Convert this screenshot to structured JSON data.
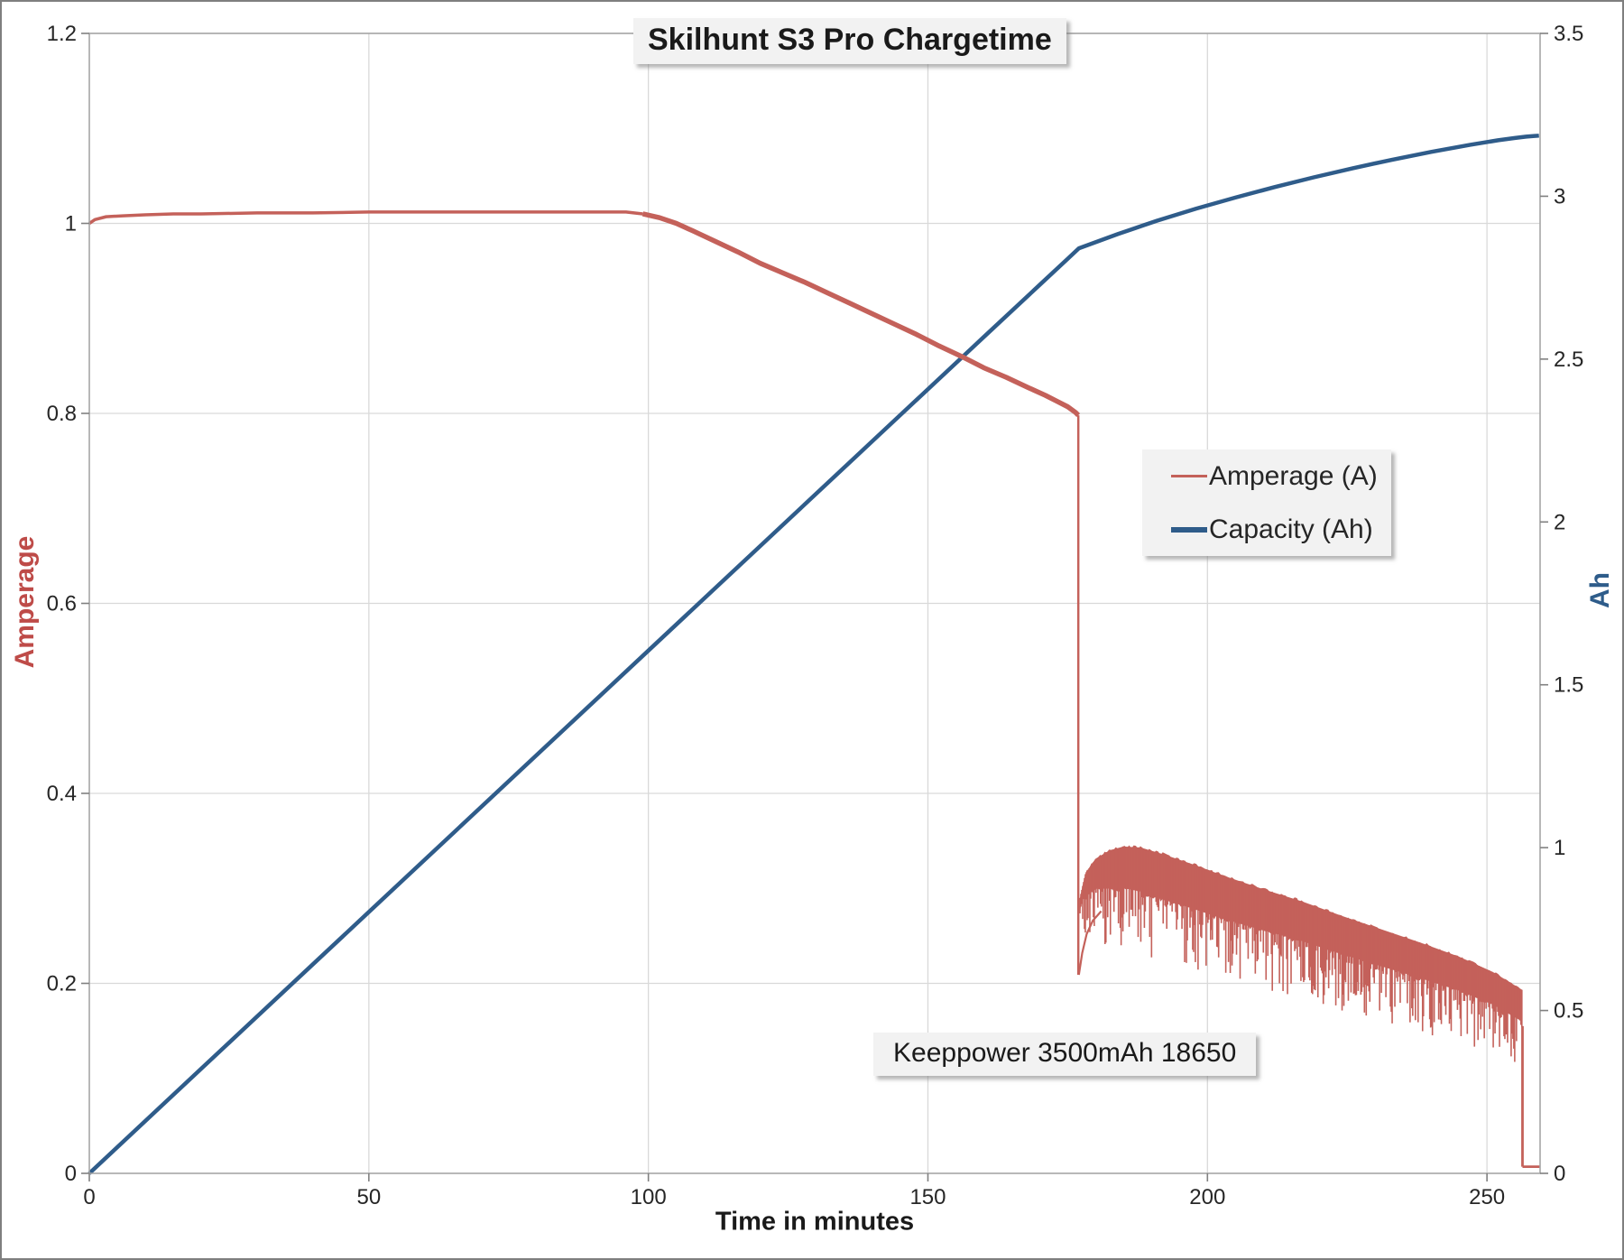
{
  "chart_data": {
    "type": "line",
    "title": "Skilhunt S3 Pro Chargetime",
    "xlabel": "Time in minutes",
    "annotation": "Keeppower 3500mAh 18650",
    "colors": {
      "amperage": "#C4615A",
      "capacity": "#2F5C8A",
      "left_axis_title": "#BE4B48",
      "right_axis_title": "#2E5C8A",
      "gridline": "#D9D9D9",
      "plot_border": "#A6A6A6",
      "tick": "#808080",
      "tick_text": "#262626"
    },
    "x_axis": {
      "ticks": [
        0,
        50,
        100,
        150,
        200,
        250
      ],
      "lim": [
        0,
        259.5
      ]
    },
    "left_axis": {
      "label": "Amperage",
      "ticks": [
        "0",
        "0.2",
        "0.4",
        "0.6",
        "0.8",
        "1",
        "1.2"
      ],
      "lim": [
        0,
        1.2
      ]
    },
    "right_axis": {
      "label": "Ah",
      "ticks": [
        "0",
        "0.5",
        "1",
        "1.5",
        "2",
        "2.5",
        "3",
        "3.5"
      ],
      "lim": [
        0,
        3.5
      ]
    },
    "legend": {
      "position": "middle-right",
      "items": [
        {
          "label": "Amperage (A)",
          "color": "#C4615A",
          "sample_thickness": 3
        },
        {
          "label": "Capacity (Ah)",
          "color": "#2F5C8A",
          "sample_thickness": 6
        }
      ]
    },
    "series": [
      {
        "name": "Amperage (A)",
        "axis": "left",
        "color": "#C4615A",
        "plateau_points": [
          [
            0,
            1.0
          ],
          [
            1,
            1.004
          ],
          [
            3,
            1.007
          ],
          [
            6,
            1.008
          ],
          [
            10,
            1.009
          ],
          [
            15,
            1.01
          ],
          [
            20,
            1.01
          ],
          [
            30,
            1.011
          ],
          [
            40,
            1.011
          ],
          [
            50,
            1.012
          ],
          [
            60,
            1.012
          ],
          [
            70,
            1.012
          ],
          [
            80,
            1.012
          ],
          [
            90,
            1.012
          ],
          [
            96,
            1.012
          ],
          [
            99,
            1.01
          ]
        ],
        "decline_points": [
          [
            99,
            1.01
          ],
          [
            102,
            1.006
          ],
          [
            105,
            1.0
          ],
          [
            108,
            0.992
          ],
          [
            112,
            0.981
          ],
          [
            116,
            0.97
          ],
          [
            120,
            0.958
          ],
          [
            124,
            0.948
          ],
          [
            128,
            0.938
          ],
          [
            132,
            0.927
          ],
          [
            136,
            0.916
          ],
          [
            140,
            0.905
          ],
          [
            144,
            0.894
          ],
          [
            148,
            0.883
          ],
          [
            152,
            0.871
          ],
          [
            156,
            0.86
          ],
          [
            160,
            0.848
          ],
          [
            164,
            0.838
          ],
          [
            168,
            0.827
          ],
          [
            171,
            0.819
          ],
          [
            173,
            0.813
          ],
          [
            175,
            0.807
          ],
          [
            176.4,
            0.801
          ],
          [
            176.9,
            0.798
          ]
        ],
        "drop": {
          "t": 176.9,
          "from": 0.798,
          "to": 0.209
        },
        "cv_noise": {
          "t_start": 177.2,
          "t_end": 256.3,
          "top_envelope": [
            [
              177.2,
              0.29
            ],
            [
              178.2,
              0.316
            ],
            [
              180,
              0.331
            ],
            [
              182.5,
              0.34
            ],
            [
              185,
              0.344
            ],
            [
              188,
              0.343
            ],
            [
              192,
              0.336
            ],
            [
              197,
              0.326
            ],
            [
              203,
              0.313
            ],
            [
              210,
              0.299
            ],
            [
              217,
              0.286
            ],
            [
              224,
              0.271
            ],
            [
              231,
              0.257
            ],
            [
              238,
              0.243
            ],
            [
              245,
              0.228
            ],
            [
              251,
              0.212
            ],
            [
              256.3,
              0.193
            ]
          ],
          "band_thickness": [
            [
              177.2,
              0.012
            ],
            [
              179,
              0.028
            ],
            [
              183,
              0.042
            ],
            [
              190,
              0.048
            ],
            [
              200,
              0.046
            ],
            [
              215,
              0.042
            ],
            [
              235,
              0.038
            ],
            [
              256.3,
              0.033
            ]
          ],
          "spike_extra_depth": [
            [
              177.2,
              0.07
            ],
            [
              180,
              0.055
            ],
            [
              185,
              0.06
            ],
            [
              195,
              0.062
            ],
            [
              205,
              0.06
            ],
            [
              215,
              0.058
            ],
            [
              225,
              0.055
            ],
            [
              235,
              0.055
            ],
            [
              245,
              0.05
            ],
            [
              256.3,
              0.045
            ]
          ],
          "left_edge": [
            [
              177.0,
              0.209
            ],
            [
              177.6,
              0.232
            ],
            [
              178.4,
              0.252
            ],
            [
              179.5,
              0.266
            ],
            [
              181,
              0.276
            ]
          ]
        },
        "final_drop": {
          "t": 256.35,
          "from": 0.155,
          "to": 0.007
        },
        "tail": {
          "t_end": 259.5,
          "value": 0.007
        }
      },
      {
        "name": "Capacity (Ah)",
        "axis": "right",
        "color": "#2F5C8A",
        "points": [
          [
            0,
            0
          ],
          [
            20,
            0.321
          ],
          [
            40,
            0.642
          ],
          [
            60,
            0.963
          ],
          [
            80,
            1.284
          ],
          [
            100,
            1.605
          ],
          [
            120,
            1.926
          ],
          [
            140,
            2.247
          ],
          [
            160,
            2.568
          ],
          [
            170,
            2.728
          ],
          [
            175,
            2.808
          ],
          [
            177,
            2.84
          ],
          [
            184,
            2.884
          ],
          [
            191,
            2.925
          ],
          [
            198,
            2.962
          ],
          [
            205,
            2.996
          ],
          [
            212,
            3.028
          ],
          [
            219,
            3.058
          ],
          [
            226,
            3.086
          ],
          [
            233,
            3.112
          ],
          [
            240,
            3.136
          ],
          [
            247,
            3.158
          ],
          [
            252,
            3.172
          ],
          [
            255,
            3.179
          ],
          [
            257,
            3.183
          ],
          [
            258.5,
            3.185
          ],
          [
            259.3,
            3.186
          ]
        ]
      }
    ]
  }
}
